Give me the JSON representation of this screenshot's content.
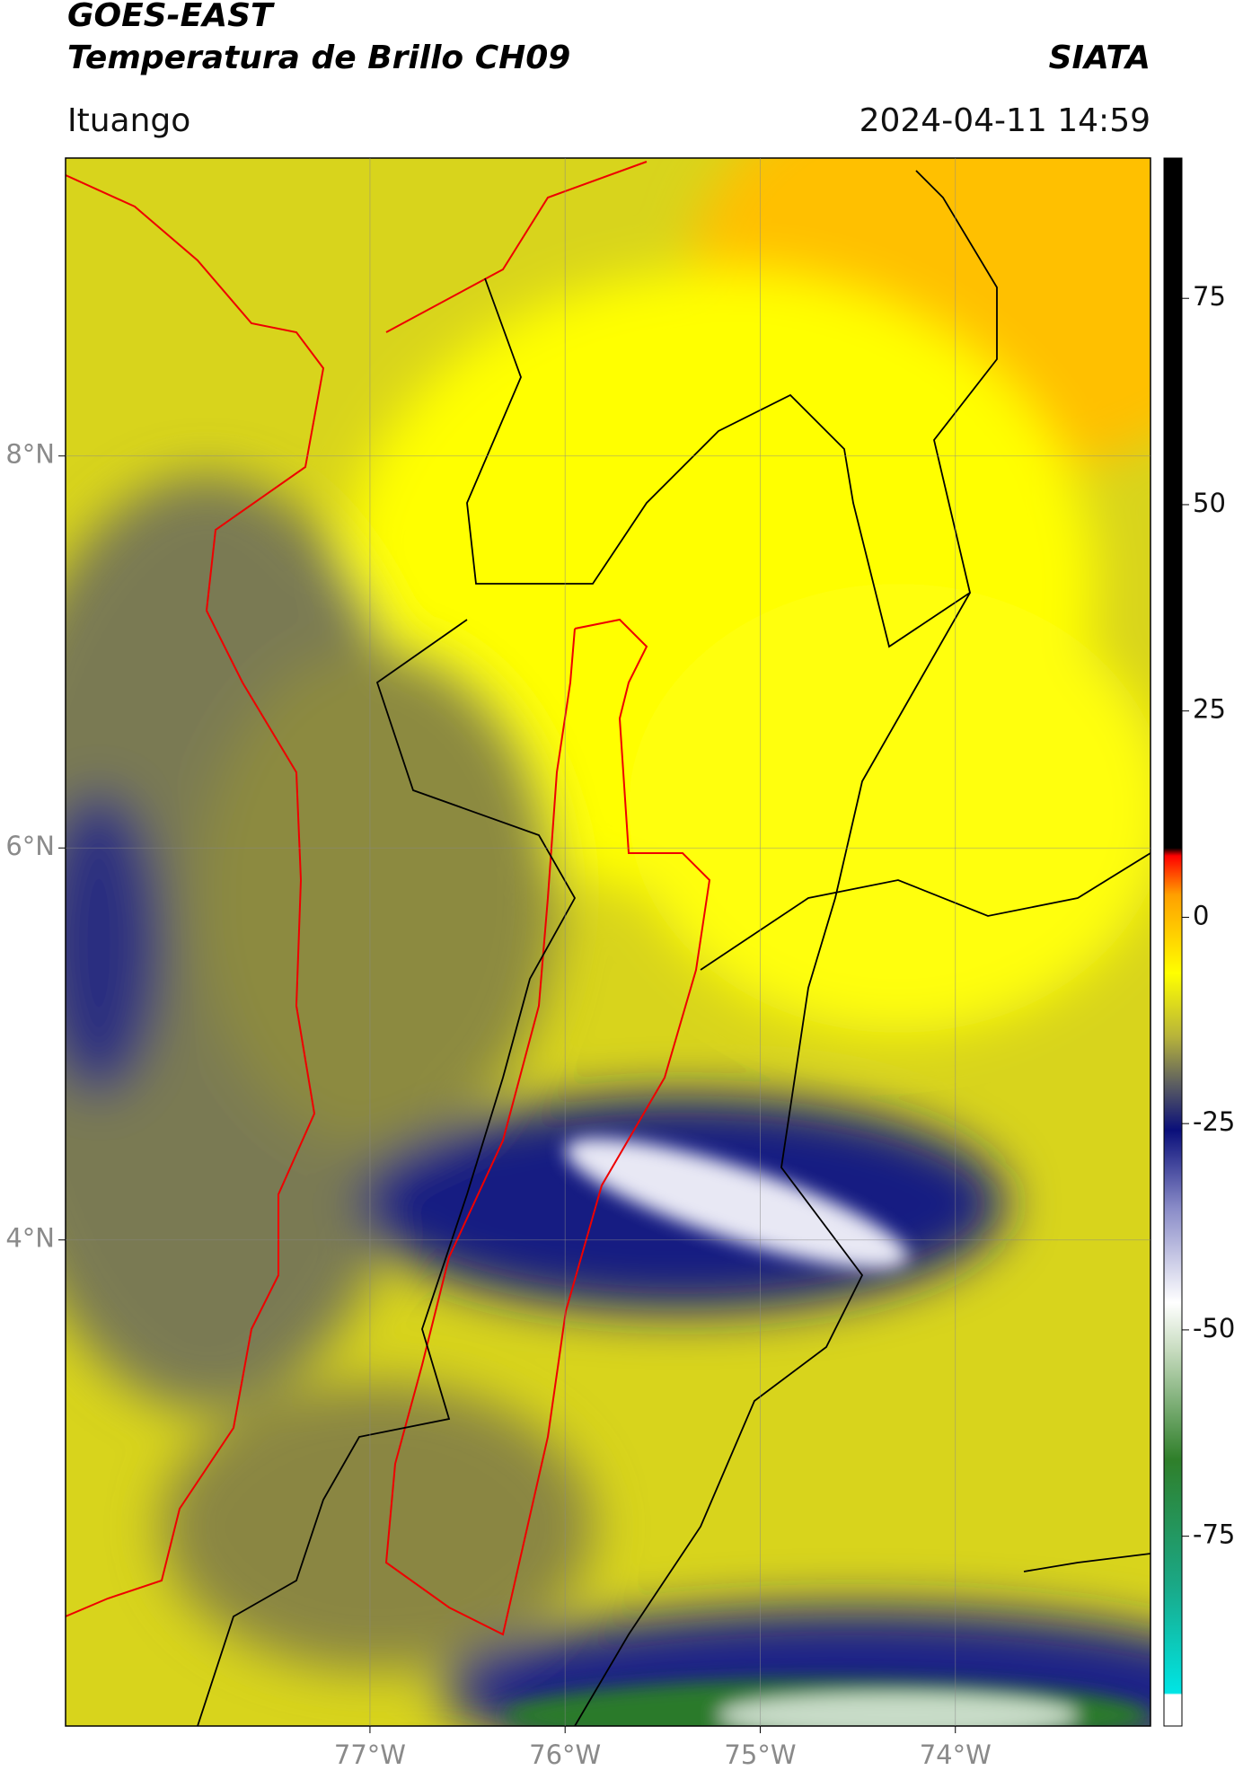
{
  "header": {
    "title": "GOES-EAST",
    "subtitle": "Temperatura de Brillo CH09",
    "source": "SIATA",
    "location": "Ituango",
    "datetime": "2024-04-11 14:59"
  },
  "map": {
    "xlim": [
      -78.56,
      -73.0
    ],
    "ylim": [
      1.52,
      9.52
    ],
    "grid": true,
    "xticks": [
      {
        "value": -77,
        "label": "77°W"
      },
      {
        "value": -76,
        "label": "76°W"
      },
      {
        "value": -75,
        "label": "75°W"
      },
      {
        "value": -74,
        "label": "74°W"
      }
    ],
    "yticks": [
      {
        "value": 8,
        "label": "8°N"
      },
      {
        "value": 6,
        "label": "6°N"
      },
      {
        "value": 4,
        "label": "4°N"
      }
    ]
  },
  "colorbar": {
    "lim": [
      -98,
      92
    ],
    "ticks": [
      75,
      50,
      25,
      0,
      -25,
      -50,
      -75
    ]
  }
}
